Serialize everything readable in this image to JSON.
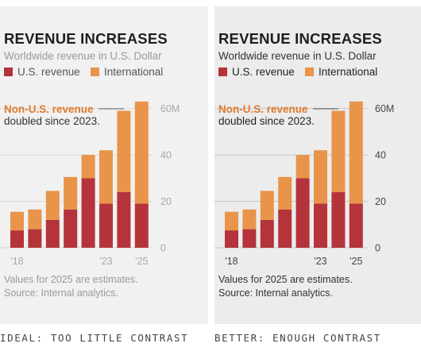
{
  "captions": {
    "left": "IDEAL: TOO LITTLE CONTRAST",
    "right": "BETTER: ENOUGH CONTRAST"
  },
  "palette": {
    "us_revenue": "#b5333a",
    "international": "#e8944a",
    "annotation_accent": "#e07a2e",
    "left_panel": {
      "background": "#f1f1f1",
      "title": "#1e1e1e",
      "body_text": "#9a9a9a",
      "legend_text": "#555555",
      "axis_text": "#a8a8a8",
      "annotation_text": "#333333",
      "gridline": "#d8d8d8"
    },
    "right_panel": {
      "background": "#ececec",
      "title": "#1e1e1e",
      "body_text": "#333333",
      "legend_text": "#222222",
      "axis_text": "#444444",
      "annotation_text": "#222222",
      "gridline": "#c8c8c8"
    }
  },
  "chart_data": [
    {
      "type": "bar",
      "stacked": true,
      "panel": "left",
      "title": "REVENUE INCREASES",
      "subtitle": "Worldwide revenue in U.S. Dollar",
      "categories": [
        "2018",
        "2019",
        "2020",
        "2021",
        "2022",
        "2023",
        "2024",
        "2025"
      ],
      "x_tick_labels": [
        "'18",
        "",
        "",
        "",
        "",
        "'23",
        "",
        "'25"
      ],
      "series": [
        {
          "name": "U.S. revenue",
          "values": [
            7.5,
            8,
            12,
            16.5,
            30,
            19,
            24,
            19
          ]
        },
        {
          "name": "International",
          "values": [
            8,
            8.5,
            12.5,
            14,
            10,
            23,
            35,
            44
          ]
        }
      ],
      "ylim": [
        0,
        65
      ],
      "y_ticks": [
        0,
        20,
        40,
        60
      ],
      "y_tick_labels": [
        "0",
        "20",
        "40",
        "60M"
      ],
      "axis_position": "right",
      "grid": true,
      "legend": "top-left",
      "annotation": {
        "line1": "Non-U.S. revenue",
        "line2": "doubled since 2023."
      },
      "notes": [
        "Values for 2025 are estimates.",
        "Source: Internal analytics."
      ]
    },
    {
      "type": "bar",
      "stacked": true,
      "panel": "right",
      "title": "REVENUE INCREASES",
      "subtitle": "Worldwide revenue in U.S. Dollar",
      "categories": [
        "2018",
        "2019",
        "2020",
        "2021",
        "2022",
        "2023",
        "2024",
        "2025"
      ],
      "x_tick_labels": [
        "'18",
        "",
        "",
        "",
        "",
        "'23",
        "",
        "'25"
      ],
      "series": [
        {
          "name": "U.S. revenue",
          "values": [
            7.5,
            8,
            12,
            16.5,
            30,
            19,
            24,
            19
          ]
        },
        {
          "name": "International",
          "values": [
            8,
            8.5,
            12.5,
            14,
            10,
            23,
            35,
            44
          ]
        }
      ],
      "ylim": [
        0,
        65
      ],
      "y_ticks": [
        0,
        20,
        40,
        60
      ],
      "y_tick_labels": [
        "0",
        "20",
        "40",
        "60M"
      ],
      "axis_position": "right",
      "grid": true,
      "legend": "top-left",
      "annotation": {
        "line1": "Non-U.S. revenue",
        "line2": "doubled since 2023."
      },
      "notes": [
        "Values for 2025 are estimates.",
        "Source: Internal analytics."
      ]
    }
  ]
}
